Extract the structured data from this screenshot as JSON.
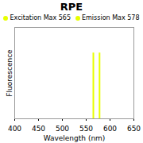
{
  "chart_data": {
    "type": "stem",
    "title": "RPE",
    "xlabel": "Wavelength (nm)",
    "ylabel": "Fluorescence",
    "series": [
      {
        "name": "Excitation Max 565",
        "color": "#e8ff00",
        "x": [
          565
        ],
        "values": [
          0.72
        ]
      },
      {
        "name": "Emission Max 578",
        "color": "#e8ff00",
        "x": [
          578
        ],
        "values": [
          0.72
        ]
      }
    ],
    "xlim": [
      400,
      650
    ],
    "xticks": [
      400,
      450,
      500,
      550,
      600,
      650
    ],
    "ylim": [
      0,
      1
    ],
    "yticks": [],
    "tick_labels": "x",
    "legend": "top",
    "grid": false
  }
}
